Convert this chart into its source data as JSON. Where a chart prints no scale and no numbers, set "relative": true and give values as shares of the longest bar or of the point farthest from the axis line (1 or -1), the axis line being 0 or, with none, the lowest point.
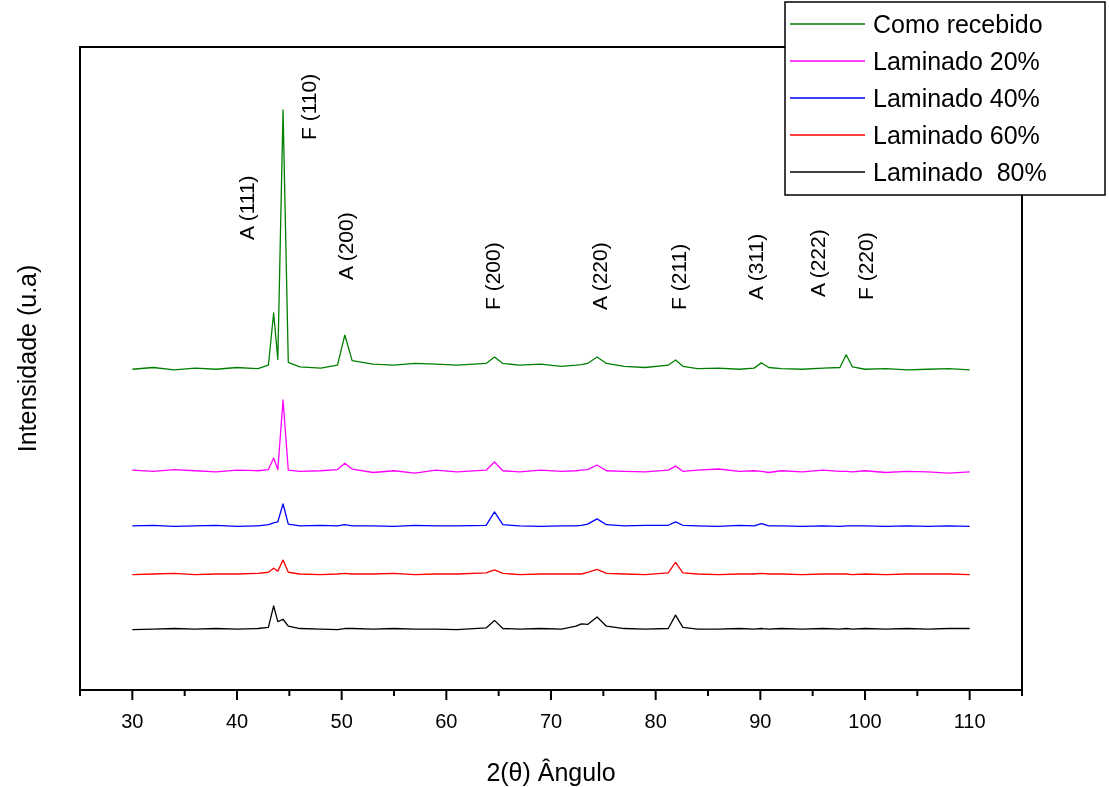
{
  "chart_data": {
    "type": "line",
    "relative": true,
    "xlabel": "2(θ) Ângulo",
    "ylabel": "Intensidade (u.a)",
    "xlim": [
      25,
      115
    ],
    "xticks": [
      {
        "value": 25,
        "label": null
      },
      30,
      {
        "value": 35,
        "label": null
      },
      40,
      {
        "value": 45,
        "label": null
      },
      50,
      {
        "value": 55,
        "label": null
      },
      60,
      {
        "value": 65,
        "label": null
      },
      70,
      {
        "value": 75,
        "label": null
      },
      80,
      {
        "value": 85,
        "label": null
      },
      90,
      {
        "value": 95,
        "label": null
      },
      100,
      {
        "value": 105,
        "label": null
      },
      110,
      {
        "value": 115,
        "label": null
      }
    ],
    "grid": false,
    "legend": "top right",
    "marker": "none",
    "line_style": "solid",
    "x": [
      30,
      32,
      34,
      36,
      38,
      40,
      42,
      43.0,
      43.5,
      43.9,
      44.4,
      44.9,
      46,
      48,
      49.6,
      50.3,
      51,
      53,
      55,
      57,
      59,
      61,
      63.8,
      64.6,
      65.4,
      67,
      69,
      71,
      72.4,
      72.9,
      73.5,
      74.4,
      75.3,
      77,
      79,
      81.2,
      81.9,
      82.6,
      84,
      86,
      88,
      89.4,
      90.1,
      90.8,
      92,
      94,
      96,
      97.6,
      98.2,
      98.8,
      100,
      102,
      104,
      106,
      108,
      110
    ],
    "series": [
      {
        "name": "Como recebido",
        "color": "#008000",
        "values": [
          0.553,
          0.556,
          0.552,
          0.555,
          0.553,
          0.556,
          0.554,
          0.56,
          0.65,
          0.57,
          1,
          0.565,
          0.557,
          0.555,
          0.56,
          0.612,
          0.568,
          0.562,
          0.56,
          0.563,
          0.562,
          0.56,
          0.563,
          0.574,
          0.563,
          0.56,
          0.562,
          0.558,
          0.56,
          0.561,
          0.563,
          0.574,
          0.563,
          0.558,
          0.556,
          0.56,
          0.569,
          0.558,
          0.554,
          0.555,
          0.553,
          0.555,
          0.564,
          0.556,
          0.554,
          0.553,
          0.555,
          0.556,
          0.578,
          0.557,
          0.553,
          0.554,
          0.552,
          0.553,
          0.554,
          0.552
        ]
      },
      {
        "name": "Laminado 20%",
        "color": "#ff00ff",
        "values": [
          0.379,
          0.377,
          0.38,
          0.378,
          0.376,
          0.379,
          0.378,
          0.38,
          0.4,
          0.38,
          0.5,
          0.379,
          0.377,
          0.378,
          0.38,
          0.391,
          0.381,
          0.375,
          0.378,
          0.374,
          0.379,
          0.376,
          0.379,
          0.393,
          0.378,
          0.376,
          0.379,
          0.377,
          0.378,
          0.379,
          0.38,
          0.388,
          0.378,
          0.377,
          0.376,
          0.379,
          0.386,
          0.377,
          0.379,
          0.381,
          0.377,
          0.378,
          0.377,
          0.375,
          0.378,
          0.376,
          0.379,
          0.377,
          0.377,
          0.376,
          0.378,
          0.375,
          0.377,
          0.376,
          0.374,
          0.376
        ]
      },
      {
        "name": "Laminado 40%",
        "color": "#0000ff",
        "values": [
          0.283,
          0.284,
          0.282,
          0.283,
          0.284,
          0.282,
          0.283,
          0.285,
          0.288,
          0.29,
          0.321,
          0.286,
          0.283,
          0.284,
          0.283,
          0.285,
          0.283,
          0.283,
          0.282,
          0.284,
          0.283,
          0.283,
          0.284,
          0.307,
          0.285,
          0.283,
          0.282,
          0.283,
          0.283,
          0.284,
          0.286,
          0.295,
          0.285,
          0.283,
          0.284,
          0.284,
          0.29,
          0.284,
          0.283,
          0.282,
          0.284,
          0.283,
          0.287,
          0.283,
          0.283,
          0.282,
          0.283,
          0.282,
          0.283,
          0.283,
          0.283,
          0.282,
          0.283,
          0.282,
          0.283,
          0.282
        ]
      },
      {
        "name": "Laminado 60%",
        "color": "#ff0000",
        "values": [
          0.199,
          0.2,
          0.201,
          0.199,
          0.2,
          0.2,
          0.201,
          0.203,
          0.21,
          0.205,
          0.224,
          0.203,
          0.2,
          0.199,
          0.2,
          0.201,
          0.2,
          0.2,
          0.201,
          0.199,
          0.2,
          0.2,
          0.202,
          0.207,
          0.201,
          0.199,
          0.2,
          0.2,
          0.2,
          0.2,
          0.203,
          0.208,
          0.201,
          0.2,
          0.199,
          0.202,
          0.22,
          0.202,
          0.2,
          0.199,
          0.2,
          0.2,
          0.201,
          0.2,
          0.2,
          0.199,
          0.2,
          0.2,
          0.2,
          0.199,
          0.2,
          0.199,
          0.2,
          0.2,
          0.2,
          0.199
        ]
      },
      {
        "name": "Laminado  80%",
        "color": "#000000",
        "values": [
          0.104,
          0.105,
          0.106,
          0.105,
          0.106,
          0.105,
          0.106,
          0.108,
          0.145,
          0.118,
          0.122,
          0.11,
          0.106,
          0.105,
          0.104,
          0.106,
          0.106,
          0.105,
          0.106,
          0.105,
          0.105,
          0.104,
          0.107,
          0.12,
          0.106,
          0.105,
          0.106,
          0.105,
          0.11,
          0.114,
          0.113,
          0.126,
          0.11,
          0.106,
          0.105,
          0.106,
          0.129,
          0.108,
          0.105,
          0.105,
          0.106,
          0.105,
          0.106,
          0.105,
          0.106,
          0.105,
          0.106,
          0.105,
          0.106,
          0.105,
          0.106,
          0.105,
          0.106,
          0.105,
          0.106,
          0.106
        ]
      }
    ],
    "annotations": [
      "A (111)",
      "F (110)",
      "A (200)",
      "F (200)",
      "A (220)",
      "F (211)",
      "A (311)",
      "A (222)",
      "F (220)"
    ]
  }
}
